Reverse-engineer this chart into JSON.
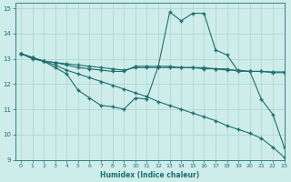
{
  "bg_color": "#ceecea",
  "grid_color": "#aad4d0",
  "line_color": "#1e7070",
  "xlabel": "Humidex (Indice chaleur)",
  "xlim": [
    -0.5,
    23
  ],
  "ylim": [
    9,
    15.2
  ],
  "yticks": [
    9,
    10,
    11,
    12,
    13,
    14,
    15
  ],
  "xticks": [
    0,
    1,
    2,
    3,
    4,
    5,
    6,
    7,
    8,
    9,
    10,
    11,
    12,
    13,
    14,
    15,
    16,
    17,
    18,
    19,
    20,
    21,
    22,
    23
  ],
  "line1_x": [
    0,
    1,
    2,
    3,
    4,
    5,
    6,
    7,
    8,
    9,
    10,
    11,
    12,
    13,
    14,
    15,
    16,
    17,
    18,
    19,
    20,
    21,
    22,
    23
  ],
  "line1_y": [
    13.2,
    13.05,
    12.9,
    12.75,
    12.55,
    12.4,
    12.25,
    12.1,
    11.95,
    11.8,
    11.65,
    11.5,
    11.3,
    11.15,
    11.0,
    10.85,
    10.7,
    10.55,
    10.35,
    10.2,
    10.05,
    9.85,
    9.5,
    9.1
  ],
  "line2_x": [
    0,
    1,
    2,
    3,
    4,
    5,
    6,
    7,
    8,
    9,
    10,
    11,
    12,
    13,
    14,
    15,
    16,
    17,
    18,
    19,
    20,
    21,
    22,
    23
  ],
  "line2_y": [
    13.2,
    13.0,
    12.9,
    12.65,
    12.4,
    11.75,
    11.45,
    11.15,
    11.1,
    11.0,
    11.45,
    11.4,
    12.7,
    14.85,
    14.5,
    14.8,
    14.8,
    13.35,
    13.15,
    12.5,
    12.5,
    11.4,
    10.8,
    9.5
  ],
  "line3_x": [
    0,
    1,
    2,
    3,
    4,
    5,
    6,
    7,
    8,
    9,
    10,
    11,
    12,
    13,
    14,
    15,
    16,
    17,
    18,
    19,
    20,
    21,
    22,
    23
  ],
  "line3_y": [
    13.2,
    13.05,
    12.9,
    12.85,
    12.75,
    12.65,
    12.6,
    12.55,
    12.5,
    12.5,
    12.7,
    12.7,
    12.7,
    12.7,
    12.65,
    12.65,
    12.65,
    12.6,
    12.6,
    12.5,
    12.5,
    12.5,
    12.45,
    12.45
  ],
  "line4_x": [
    0,
    1,
    2,
    3,
    4,
    5,
    6,
    7,
    8,
    9,
    10,
    11,
    12,
    13,
    14,
    15,
    16,
    17,
    18,
    19,
    20,
    21,
    22,
    23
  ],
  "line4_y": [
    13.2,
    13.05,
    12.9,
    12.85,
    12.8,
    12.75,
    12.7,
    12.65,
    12.6,
    12.55,
    12.65,
    12.65,
    12.65,
    12.65,
    12.65,
    12.65,
    12.6,
    12.6,
    12.55,
    12.55,
    12.5,
    12.5,
    12.48,
    12.48
  ]
}
